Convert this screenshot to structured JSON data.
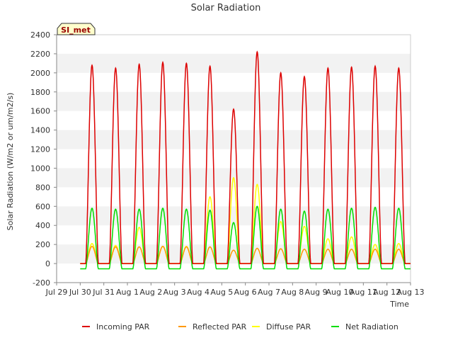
{
  "chart_data": {
    "type": "line",
    "title": "Solar Radiation",
    "xlabel": "Time",
    "ylabel": "Solar Radiation (W/m2 or um/m2/s)",
    "site_label": "SI_met",
    "ylim": [
      -200,
      2400
    ],
    "yticks": [
      -200,
      0,
      200,
      400,
      600,
      800,
      1000,
      1200,
      1400,
      1600,
      1800,
      2000,
      2200,
      2400
    ],
    "xlim": [
      0,
      15
    ],
    "xticks": [
      "Jul 29",
      "Jul 30",
      "Jul 31",
      "Aug 1",
      "Aug 2",
      "Aug 3",
      "Aug 4",
      "Aug 5",
      "Aug 6",
      "Aug 7",
      "Aug 8",
      "Aug 9",
      "Aug 10",
      "Aug 11",
      "Aug 12",
      "Aug 13"
    ],
    "grid": "horizontal bands",
    "legend_position": "bottom",
    "series_unit": "W/m2 or um/m2/s",
    "day_centers": [
      1.5,
      2.5,
      3.5,
      4.5,
      5.5,
      6.5,
      7.5,
      8.5,
      9.5,
      10.5,
      11.5,
      12.5,
      13.5,
      14.5
    ],
    "series": [
      {
        "name": "Incoming PAR",
        "color": "#dd0000",
        "daily_peak": [
          2080,
          2050,
          2090,
          2110,
          2100,
          2070,
          1620,
          2220,
          2000,
          1960,
          2050,
          2060,
          2070,
          2050
        ],
        "night_value": 0
      },
      {
        "name": "Reflected PAR",
        "color": "#ff9900",
        "daily_peak": [
          180,
          175,
          175,
          180,
          175,
          175,
          140,
          160,
          155,
          150,
          150,
          150,
          150,
          150
        ],
        "night_value": 0
      },
      {
        "name": "Diffuse PAR",
        "color": "#ffff00",
        "daily_peak": [
          210,
          190,
          380,
          180,
          180,
          700,
          900,
          830,
          440,
          390,
          260,
          280,
          200,
          210
        ],
        "night_value": 0
      },
      {
        "name": "Net Radiation",
        "color": "#00dd00",
        "daily_peak": [
          580,
          570,
          570,
          580,
          570,
          560,
          430,
          600,
          570,
          550,
          570,
          580,
          590,
          580
        ],
        "night_value": -55
      }
    ]
  }
}
